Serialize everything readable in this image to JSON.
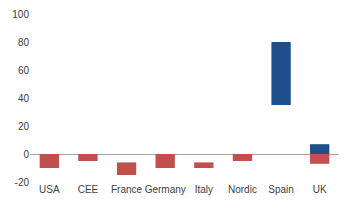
{
  "chart_data": {
    "type": "bar",
    "categories": [
      "USA",
      "CEE",
      "France",
      "Germany",
      "Italy",
      "Nordic",
      "Spain",
      "UK"
    ],
    "series": [
      {
        "color": "#c0504d",
        "base": [
          0,
          0,
          -6,
          0,
          -6,
          0,
          null,
          0
        ],
        "values": [
          -10,
          -5,
          -15,
          -10,
          -10,
          -5,
          null,
          -7
        ]
      },
      {
        "color": "#1f4e8c",
        "base": [
          null,
          null,
          null,
          null,
          null,
          null,
          35,
          0
        ],
        "values": [
          null,
          null,
          null,
          null,
          null,
          null,
          80,
          7
        ]
      }
    ],
    "ylim": [
      -20,
      100
    ],
    "yticks": [
      -20,
      0,
      20,
      40,
      60,
      80,
      100
    ],
    "grid": false
  }
}
